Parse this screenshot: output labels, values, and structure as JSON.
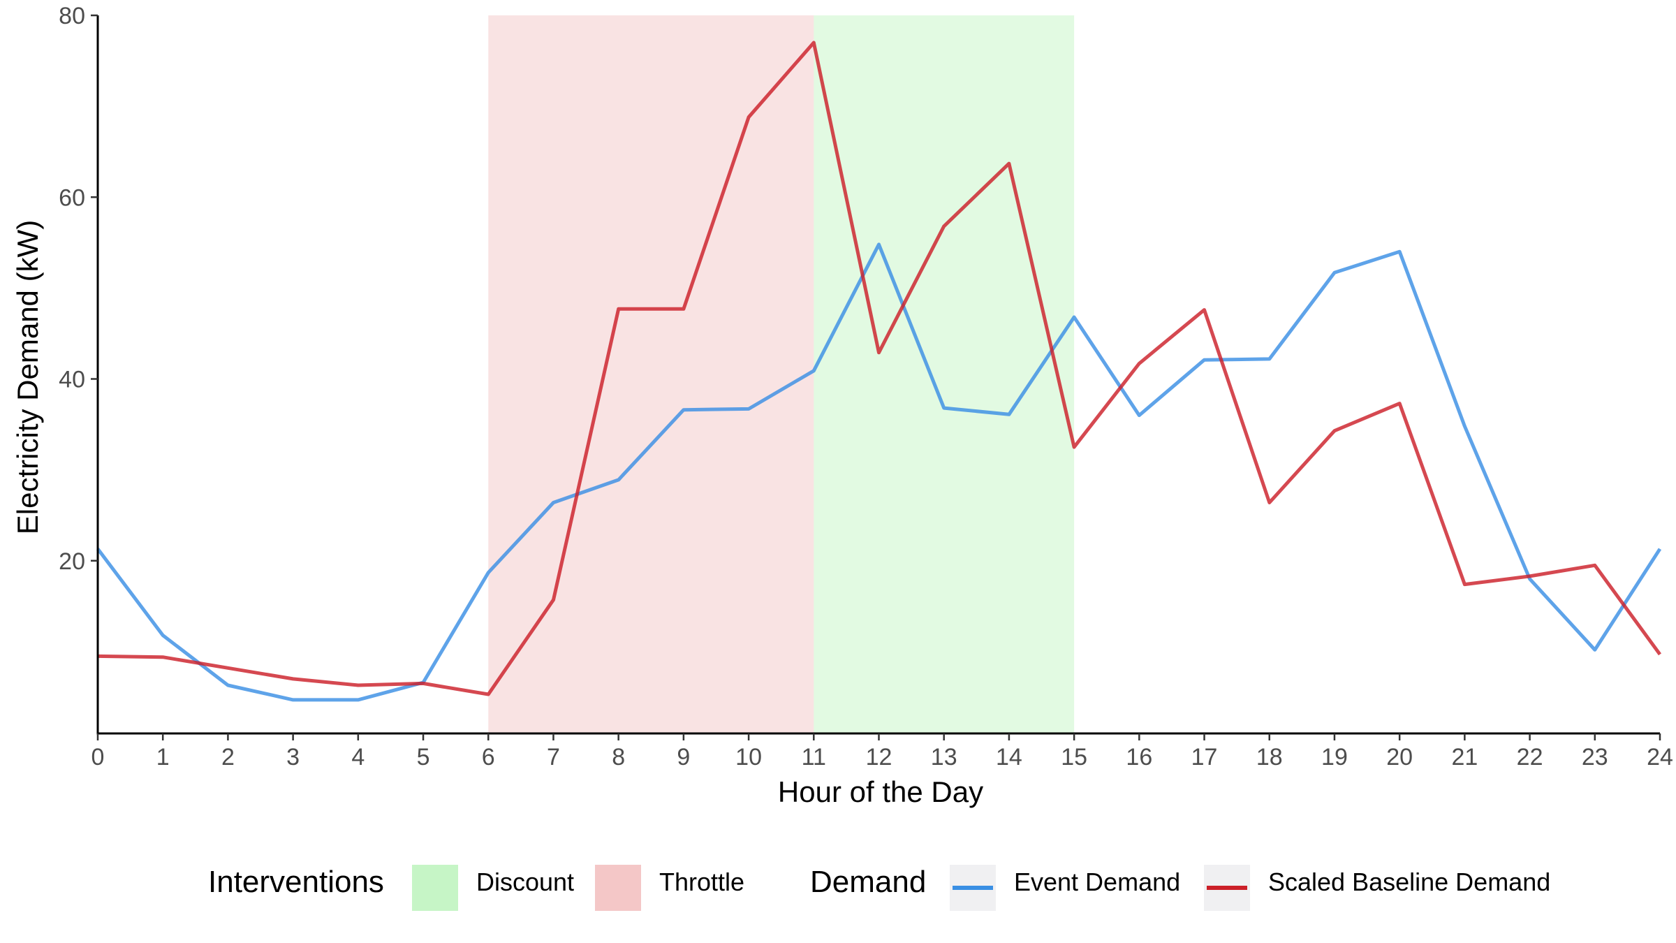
{
  "chart_data": {
    "type": "line",
    "title": "",
    "xlabel": "Hour of the Day",
    "ylabel": "Electricity Demand (kW)",
    "xlim": [
      0,
      24
    ],
    "ylim": [
      1,
      80
    ],
    "x_ticks": [
      0,
      1,
      2,
      3,
      4,
      5,
      6,
      7,
      8,
      9,
      10,
      11,
      12,
      13,
      14,
      15,
      16,
      17,
      18,
      19,
      20,
      21,
      22,
      23,
      24
    ],
    "y_ticks": [
      20,
      40,
      60,
      80
    ],
    "x": [
      0,
      1,
      2,
      3,
      4,
      5,
      6,
      7,
      8,
      9,
      10,
      11,
      12,
      13,
      14,
      15,
      16,
      17,
      18,
      19,
      20,
      21,
      22,
      23,
      24
    ],
    "series": [
      {
        "name": "Event Demand",
        "color": "#3a8fe4",
        "values": [
          21.3,
          11.8,
          6.3,
          4.7,
          4.7,
          6.6,
          18.7,
          26.4,
          28.9,
          36.6,
          36.7,
          40.9,
          54.8,
          36.8,
          36.1,
          46.8,
          36.0,
          42.1,
          42.2,
          51.7,
          54.0,
          34.8,
          18.0,
          10.2,
          21.3
        ]
      },
      {
        "name": "Scaled Baseline Demand",
        "color": "#cc2029",
        "values": [
          9.5,
          9.4,
          8.2,
          7.0,
          6.3,
          6.5,
          5.3,
          15.7,
          47.7,
          47.7,
          68.8,
          77.0,
          42.9,
          56.8,
          63.7,
          32.5,
          41.7,
          47.6,
          26.4,
          34.3,
          37.3,
          17.4,
          18.3,
          19.5,
          9.7
        ]
      }
    ],
    "shaded_regions": [
      {
        "label": "Throttle",
        "x_start": 6,
        "x_end": 11,
        "color": "#f4c7c7"
      },
      {
        "label": "Discount",
        "x_start": 11,
        "x_end": 15,
        "color": "#c6f5c6"
      }
    ],
    "grid": false,
    "legend": {
      "placement": "bottom",
      "groups": [
        {
          "title": "Interventions",
          "entries": [
            {
              "label": "Discount",
              "kind": "fill",
              "color": "#c6f5c6"
            },
            {
              "label": "Throttle",
              "kind": "fill",
              "color": "#f4c7c7"
            }
          ]
        },
        {
          "title": "Demand",
          "entries": [
            {
              "label": "Event Demand",
              "kind": "line",
              "color": "#3a8fe4"
            },
            {
              "label": "Scaled Baseline Demand",
              "kind": "line",
              "color": "#cc2029"
            }
          ]
        }
      ]
    }
  }
}
